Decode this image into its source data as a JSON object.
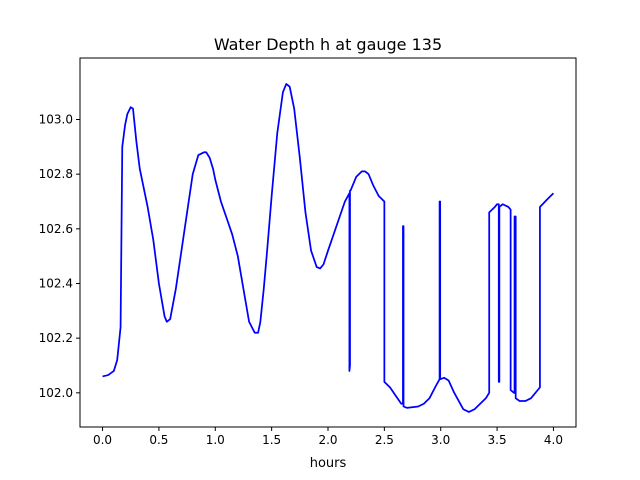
{
  "chart_data": {
    "type": "line",
    "title": "Water Depth h at gauge 135",
    "xlabel": "hours",
    "ylabel": "",
    "xlim": [
      -0.2,
      4.2
    ],
    "ylim": [
      101.875,
      103.225
    ],
    "xticks": [
      0.0,
      0.5,
      1.0,
      1.5,
      2.0,
      2.5,
      3.0,
      3.5,
      4.0
    ],
    "xtick_labels": [
      "0.0",
      "0.5",
      "1.0",
      "1.5",
      "2.0",
      "2.5",
      "3.0",
      "3.5",
      "4.0"
    ],
    "yticks": [
      102.0,
      102.2,
      102.4,
      102.6,
      102.8,
      103.0
    ],
    "ytick_labels": [
      "102.0",
      "102.2",
      "102.4",
      "102.6",
      "102.8",
      "103.0"
    ],
    "grid": false,
    "legend": "none",
    "line_color": "#0000ff",
    "series": [
      {
        "x": [
          0.0,
          0.05,
          0.1,
          0.13,
          0.16,
          0.175,
          0.175,
          0.2,
          0.22,
          0.25,
          0.27,
          0.28,
          0.3,
          0.33,
          0.4,
          0.45,
          0.5,
          0.55,
          0.57,
          0.6,
          0.65,
          0.7,
          0.75,
          0.8,
          0.85,
          0.9,
          0.92,
          0.95,
          0.98,
          1.0,
          1.05,
          1.1,
          1.15,
          1.2,
          1.25,
          1.3,
          1.35,
          1.38,
          1.4,
          1.43,
          1.46,
          1.5,
          1.55,
          1.6,
          1.63,
          1.66,
          1.7,
          1.75,
          1.8,
          1.85,
          1.9,
          1.93,
          1.96,
          2.0,
          2.05,
          2.1,
          2.15,
          2.19,
          2.19,
          2.195,
          2.195,
          2.2,
          2.25,
          2.3,
          2.33,
          2.36,
          2.4,
          2.45,
          2.5,
          2.5,
          2.55,
          2.6,
          2.65,
          2.665,
          2.665,
          2.67,
          2.67,
          2.7,
          2.8,
          2.85,
          2.9,
          2.95,
          2.99,
          2.99,
          2.995,
          2.995,
          3.03,
          3.07,
          3.12,
          3.2,
          3.25,
          3.3,
          3.4,
          3.43,
          3.43,
          3.48,
          3.5,
          3.515,
          3.515,
          3.52,
          3.52,
          3.55,
          3.6,
          3.62,
          3.62,
          3.65,
          3.655,
          3.655,
          3.665,
          3.665,
          3.7,
          3.75,
          3.8,
          3.88,
          3.88,
          3.95,
          4.0
        ],
        "y": [
          102.06,
          102.065,
          102.08,
          102.12,
          102.24,
          102.9,
          102.9,
          102.98,
          103.02,
          103.045,
          103.04,
          103.0,
          102.92,
          102.82,
          102.68,
          102.56,
          102.4,
          102.28,
          102.26,
          102.27,
          102.38,
          102.52,
          102.66,
          102.8,
          102.87,
          102.88,
          102.88,
          102.86,
          102.82,
          102.78,
          102.7,
          102.64,
          102.58,
          102.5,
          102.38,
          102.26,
          102.22,
          102.22,
          102.26,
          102.38,
          102.52,
          102.72,
          102.95,
          103.1,
          103.13,
          103.12,
          103.04,
          102.86,
          102.66,
          102.52,
          102.46,
          102.455,
          102.47,
          102.52,
          102.58,
          102.64,
          102.7,
          102.73,
          102.08,
          102.1,
          102.74,
          102.74,
          102.79,
          102.81,
          102.81,
          102.8,
          102.76,
          102.72,
          102.7,
          102.04,
          102.02,
          101.99,
          101.96,
          101.96,
          102.61,
          102.61,
          101.95,
          101.945,
          101.95,
          101.96,
          101.98,
          102.02,
          102.05,
          102.7,
          102.7,
          102.05,
          102.055,
          102.045,
          102.0,
          101.94,
          101.93,
          101.94,
          101.98,
          102.0,
          102.66,
          102.68,
          102.69,
          102.69,
          102.04,
          102.04,
          102.68,
          102.69,
          102.68,
          102.67,
          102.01,
          102.0,
          102.0,
          102.645,
          102.645,
          101.98,
          101.97,
          101.97,
          101.98,
          102.02,
          102.68,
          102.71,
          102.73
        ]
      }
    ]
  }
}
